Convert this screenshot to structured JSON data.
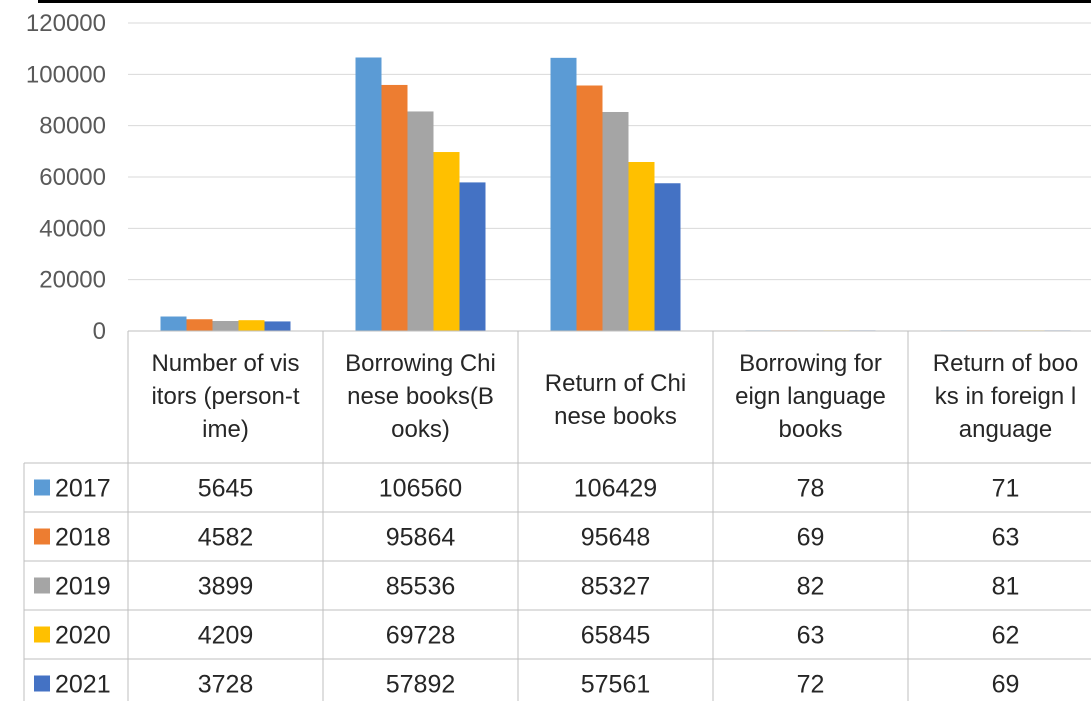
{
  "chart_data": {
    "type": "bar",
    "title": "",
    "xlabel": "",
    "ylabel": "",
    "ylim": [
      0,
      120000
    ],
    "yticks": [
      0,
      20000,
      40000,
      60000,
      80000,
      100000,
      120000
    ],
    "grid": true,
    "legend": "data-table-left",
    "categories": [
      [
        "Number of vis",
        "itors (person-t",
        "ime)"
      ],
      [
        "Borrowing Chi",
        "nese books(B",
        "ooks)"
      ],
      [
        "Return of Chi",
        "nese books"
      ],
      [
        "Borrowing for",
        "eign language",
        "books"
      ],
      [
        "Return of boo",
        "ks in foreign l",
        "anguage"
      ]
    ],
    "series": [
      {
        "name": "2017",
        "color": "#5B9BD5",
        "values": [
          5645,
          106560,
          106429,
          78,
          71
        ]
      },
      {
        "name": "2018",
        "color": "#ED7D31",
        "values": [
          4582,
          95864,
          95648,
          69,
          63
        ]
      },
      {
        "name": "2019",
        "color": "#A5A5A5",
        "values": [
          3899,
          85536,
          85327,
          82,
          81
        ]
      },
      {
        "name": "2020",
        "color": "#FFC000",
        "values": [
          4209,
          69728,
          65845,
          63,
          62
        ]
      },
      {
        "name": "2021",
        "color": "#4472C4",
        "values": [
          3728,
          57892,
          57561,
          72,
          69
        ]
      }
    ]
  }
}
